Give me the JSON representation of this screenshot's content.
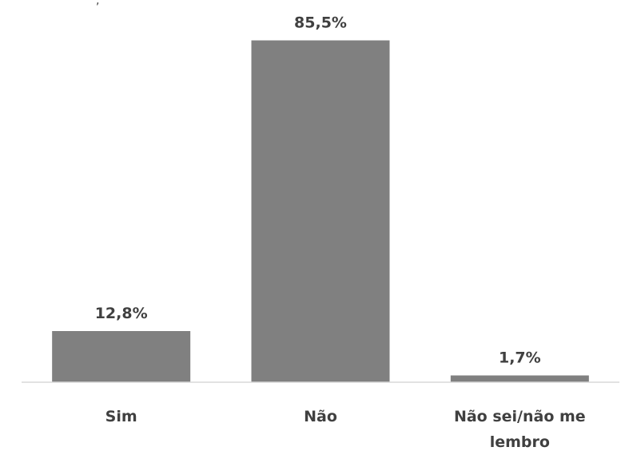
{
  "chart_data": {
    "type": "bar",
    "categories": [
      "Sim",
      "Não",
      "Não sei/não me lembro"
    ],
    "category_lines": [
      [
        "Sim"
      ],
      [
        "Não"
      ],
      [
        "Não sei/não me",
        "lembro"
      ]
    ],
    "values": [
      12.8,
      85.5,
      1.7
    ],
    "value_labels": [
      "12,8%",
      "85,5%",
      "1,7%"
    ],
    "title": "",
    "xlabel": "",
    "ylabel": "",
    "ylim": [
      0,
      100
    ],
    "grid": false,
    "bar_color": "#808080",
    "axis_color": "#d9d9d9",
    "label_color": "#404040"
  }
}
